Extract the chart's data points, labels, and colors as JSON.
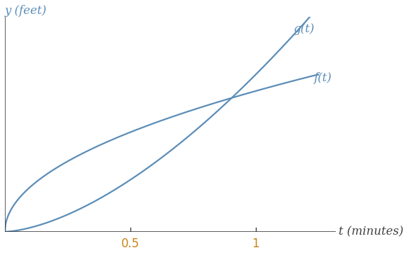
{
  "line_color": "#5b8db8",
  "axis_color": "#404040",
  "tick_label_color": "#c8861a",
  "label_color": "#5b8db8",
  "x_ticks": [
    0.5,
    1.0
  ],
  "x_tick_labels": [
    "0.5",
    "1"
  ],
  "xlim": [
    0,
    1.32
  ],
  "ylim": [
    0,
    1.0
  ],
  "f_label": "f(t)",
  "g_label": "g(t)",
  "xlabel": "t (minutes)",
  "ylabel": "y (feet)",
  "background_color": "#ffffff",
  "font_size_axis_label": 12,
  "font_size_curve_label": 12,
  "font_size_tick": 12
}
